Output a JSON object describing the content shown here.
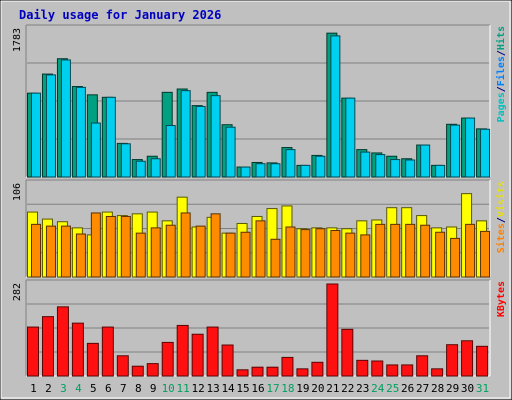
{
  "chart_data": {
    "type": "bar",
    "title": "Daily usage for January 2026",
    "days": [
      1,
      2,
      3,
      4,
      5,
      6,
      7,
      8,
      9,
      10,
      11,
      12,
      13,
      14,
      15,
      16,
      17,
      18,
      19,
      20,
      21,
      22,
      23,
      24,
      25,
      26,
      27,
      28,
      29,
      30,
      31
    ],
    "weekend_days": [
      3,
      4,
      10,
      11,
      17,
      18,
      24,
      25,
      31
    ],
    "panels": [
      {
        "name": "Pages / Files / Hits",
        "ymax_label": "1783",
        "ymax": 1783,
        "legend": [
          {
            "text": "Pages",
            "color": "#00C0C0"
          },
          {
            "text": "/",
            "color": "#000080"
          },
          {
            "text": "Files",
            "color": "#0080FF"
          },
          {
            "text": "/",
            "color": "#000080"
          },
          {
            "text": "Hits",
            "color": "#00A080"
          }
        ],
        "series": [
          {
            "name": "Hits",
            "color": "#00A080",
            "values": [
              1010,
              1240,
              1425,
              1090,
              990,
              960,
              405,
              210,
              250,
              1020,
              1060,
              860,
              1020,
              630,
              120,
              175,
              170,
              355,
              140,
              260,
              1733,
              950,
              330,
              290,
              250,
              220,
              385,
              140,
              635,
              710,
              580
            ]
          },
          {
            "name": "Files",
            "color": "#00D0F0",
            "values": [
              1010,
              1230,
              1410,
              1080,
              650,
              960,
              400,
              190,
              220,
              620,
              1040,
              850,
              980,
              600,
              120,
              160,
              160,
              330,
              140,
              250,
              1700,
              950,
              300,
              270,
              210,
              205,
              385,
              140,
              625,
              710,
              575
            ]
          }
        ]
      },
      {
        "name": "Sites / Visits",
        "ymax_label": "106",
        "ymax": 106,
        "legend": [
          {
            "text": "Sites",
            "color": "#FF8000"
          },
          {
            "text": "/",
            "color": "#000080"
          },
          {
            "text": "Visits",
            "color": "#E8E000"
          }
        ],
        "series": [
          {
            "name": "Visits",
            "color": "#FFFF00",
            "values": [
              74,
              66,
              63,
              56,
              48,
              74,
              70,
              72,
              74,
              64,
              91,
              57,
              68,
              50,
              61,
              69,
              78,
              81,
              55,
              56,
              56,
              55,
              64,
              65,
              79,
              79,
              70,
              56,
              57,
              95,
              64
            ]
          },
          {
            "name": "Sites",
            "color": "#FF8C00",
            "values": [
              60,
              58,
              58,
              49,
              73,
              69,
              69,
              50,
              56,
              59,
              73,
              58,
              72,
              50,
              51,
              64,
              43,
              57,
              54,
              55,
              53,
              50,
              48,
              60,
              60,
              60,
              59,
              51,
              44,
              60,
              52
            ]
          }
        ]
      },
      {
        "name": "KBytes",
        "ymax_label": "282",
        "ymax": 282,
        "legend": [
          {
            "text": "KBytes",
            "color": "#FF0000"
          }
        ],
        "series": [
          {
            "name": "KBytes",
            "color": "#FF1010",
            "values": [
              150,
              182,
              212,
              162,
              100,
              150,
              62,
              30,
              38,
              103,
              155,
              128,
              150,
              95,
              19,
              27,
              27,
              57,
              22,
              42,
              282,
              143,
              48,
              46,
              34,
              34,
              62,
              22,
              96,
              108,
              91
            ]
          }
        ]
      }
    ]
  }
}
